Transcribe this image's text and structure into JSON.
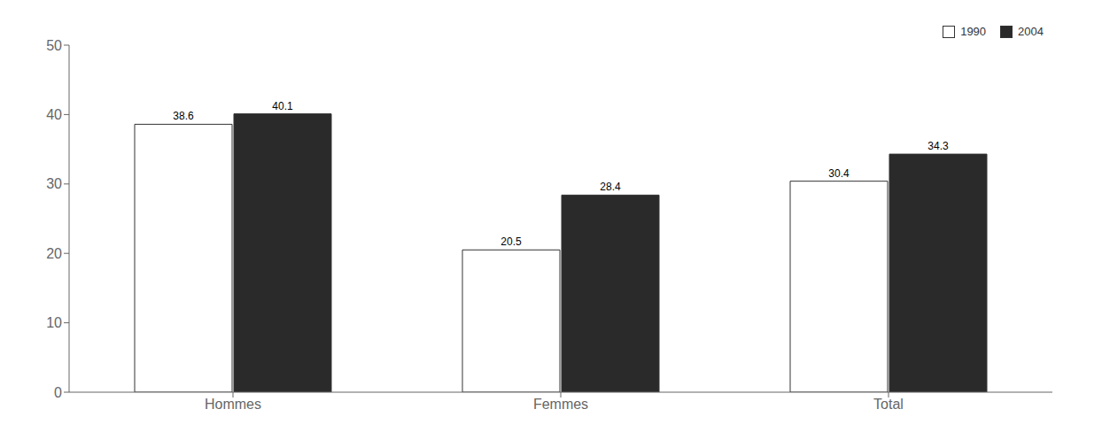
{
  "chart_data": {
    "type": "bar",
    "categories": [
      "Hommes",
      "Femmes",
      "Total"
    ],
    "series": [
      {
        "name": "1990",
        "color": "#ffffff",
        "values": [
          38.6,
          20.5,
          30.4
        ]
      },
      {
        "name": "2004",
        "color": "#2a2a2a",
        "values": [
          40.1,
          28.4,
          34.3
        ]
      }
    ],
    "ylim": [
      0,
      50
    ],
    "yticks": [
      0,
      10,
      20,
      30,
      40,
      50
    ],
    "grid": false,
    "legend": "upper right",
    "data_labels": true
  }
}
